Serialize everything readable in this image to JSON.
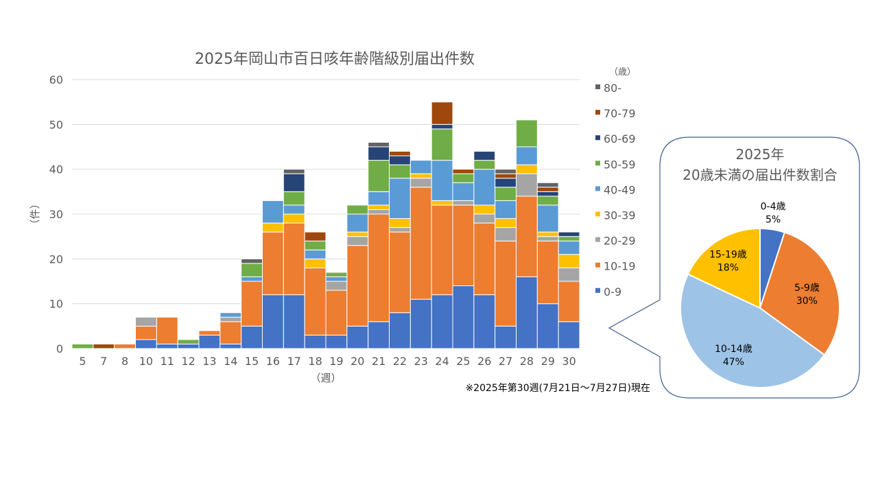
{
  "chart_data": [
    {
      "type": "bar",
      "stacked": true,
      "title": "2025年岡山市百日咳年齢階級別届出件数",
      "xlabel": "（週）",
      "ylabel": "（件）",
      "ylim": [
        0,
        60
      ],
      "yticks": [
        0,
        10,
        20,
        30,
        40,
        50,
        60
      ],
      "grid": true,
      "legend_title": "（歳）",
      "legend_position": "right",
      "categories": [
        "5",
        "7",
        "8",
        "10",
        "11",
        "12",
        "13",
        "14",
        "15",
        "16",
        "17",
        "18",
        "19",
        "20",
        "21",
        "22",
        "23",
        "24",
        "25",
        "26",
        "27",
        "28",
        "29",
        "30"
      ],
      "series": [
        {
          "name": "0-9",
          "color": "#4472C4",
          "values": [
            0,
            0,
            0,
            2,
            1,
            1,
            3,
            1,
            5,
            12,
            12,
            3,
            3,
            5,
            6,
            8,
            11,
            12,
            14,
            12,
            5,
            16,
            10,
            6
          ]
        },
        {
          "name": "10-19",
          "color": "#ED7D31",
          "values": [
            0,
            0,
            1,
            3,
            6,
            0,
            1,
            5,
            10,
            14,
            16,
            15,
            10,
            18,
            24,
            18,
            25,
            20,
            18,
            16,
            19,
            18,
            14,
            9
          ]
        },
        {
          "name": "20-29",
          "color": "#A5A5A5",
          "values": [
            0,
            0,
            0,
            2,
            0,
            0,
            0,
            1,
            0,
            0,
            0,
            0,
            2,
            2,
            1,
            1,
            2,
            0,
            1,
            2,
            3,
            5,
            1,
            3
          ]
        },
        {
          "name": "30-39",
          "color": "#FFC000",
          "values": [
            0,
            0,
            0,
            0,
            0,
            0,
            0,
            0,
            0,
            2,
            2,
            2,
            0,
            1,
            1,
            2,
            1,
            1,
            0,
            2,
            2,
            2,
            1,
            3
          ]
        },
        {
          "name": "40-49",
          "color": "#5B9BD5",
          "values": [
            0,
            0,
            0,
            0,
            0,
            0,
            0,
            1,
            1,
            5,
            2,
            2,
            1,
            4,
            3,
            9,
            3,
            9,
            4,
            8,
            4,
            4,
            6,
            3
          ]
        },
        {
          "name": "50-59",
          "color": "#70AD47",
          "values": [
            1,
            0,
            0,
            0,
            0,
            1,
            0,
            0,
            3,
            0,
            3,
            2,
            1,
            2,
            7,
            3,
            0,
            7,
            2,
            2,
            3,
            6,
            2,
            1
          ]
        },
        {
          "name": "60-69",
          "color": "#264478",
          "values": [
            0,
            0,
            0,
            0,
            0,
            0,
            0,
            0,
            0,
            0,
            4,
            0,
            0,
            0,
            3,
            2,
            0,
            1,
            0,
            2,
            2,
            0,
            1,
            1
          ]
        },
        {
          "name": "70-79",
          "color": "#9E480E",
          "values": [
            0,
            1,
            0,
            0,
            0,
            0,
            0,
            0,
            0,
            0,
            0,
            2,
            0,
            0,
            0,
            1,
            0,
            5,
            1,
            0,
            1,
            0,
            1,
            0
          ]
        },
        {
          "name": "80-",
          "color": "#636363",
          "values": [
            0,
            0,
            0,
            0,
            0,
            0,
            0,
            0,
            1,
            0,
            1,
            0,
            0,
            0,
            1,
            0,
            0,
            0,
            0,
            0,
            1,
            0,
            1,
            0
          ]
        }
      ]
    },
    {
      "type": "pie",
      "title_line1": "2025年",
      "title_line2": "20歳未満の届出件数割合",
      "slices": [
        {
          "label": "0-4歳",
          "pct": "5%",
          "value": 5,
          "color": "#4472C4"
        },
        {
          "label": "5-9歳",
          "pct": "30%",
          "value": 30,
          "color": "#ED7D31"
        },
        {
          "label": "10-14歳",
          "pct": "47%",
          "value": 47,
          "color": "#9DC3E6"
        },
        {
          "label": "15-19歳",
          "pct": "18%",
          "value": 18,
          "color": "#FFC000"
        }
      ]
    }
  ],
  "footnote": "※2025年第30週(7月21日～7月27日)現在"
}
